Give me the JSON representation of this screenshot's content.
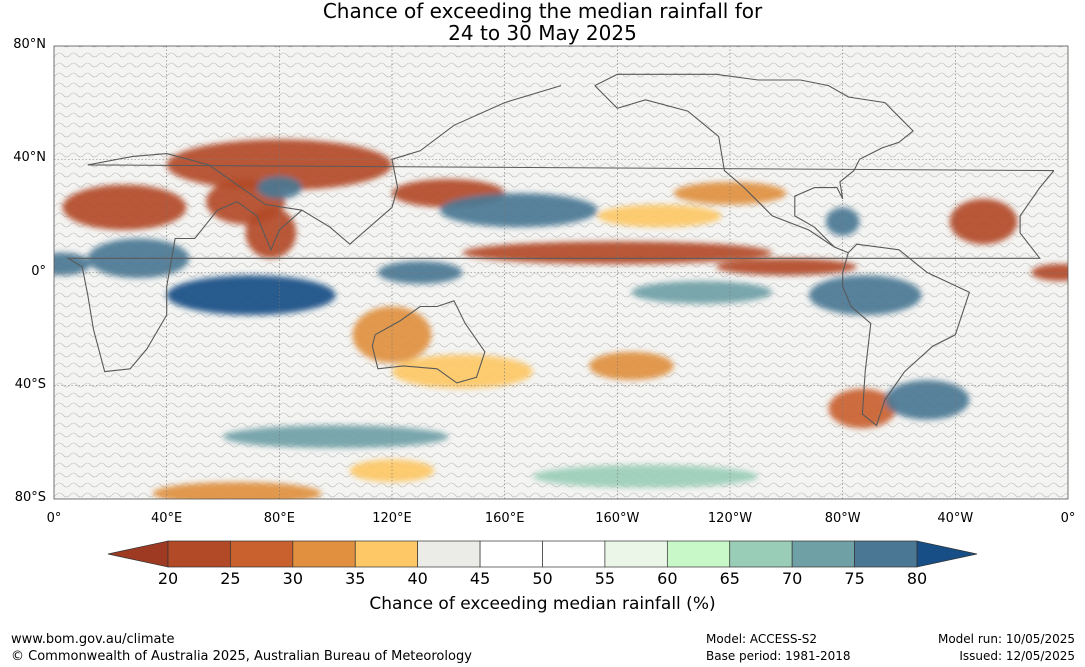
{
  "title_line1": "Chance of exceeding the median rainfall for",
  "title_line2": "24 to 30 May 2025",
  "lat_labels": [
    "80°N",
    "40°N",
    "0°",
    "40°S",
    "80°S"
  ],
  "lon_labels": [
    "0°",
    "40°E",
    "80°E",
    "120°E",
    "160°E",
    "160°W",
    "120°W",
    "80°W",
    "40°W",
    "0°"
  ],
  "colorbar": {
    "ticks": [
      "20",
      "25",
      "30",
      "35",
      "40",
      "45",
      "50",
      "55",
      "60",
      "65",
      "70",
      "75",
      "80"
    ],
    "colors": [
      "#9e3a22",
      "#b24a27",
      "#c9612f",
      "#e0903f",
      "#fdc865",
      "#ebebe7",
      "#ffffff",
      "#ffffff",
      "#ebf6e9",
      "#c8f7c8",
      "#9acdb8",
      "#6fa0a6",
      "#4a7894",
      "#174e85"
    ],
    "label": "Chance of exceeding median rainfall (%)"
  },
  "footer": {
    "website": "www.bom.gov.au/climate",
    "copyright": "© Commonwealth of Australia 2025, Australian Bureau of Meteorology",
    "model": "Model: ACCESS-S2",
    "base_period": "Base period: 1981-2018",
    "model_run": "Model run: 10/05/2025",
    "issued": "Issued: 12/05/2025"
  },
  "map": {
    "regions": [
      {
        "lon": 80,
        "lat": 38,
        "rx": 40,
        "ry": 9,
        "pct": 22
      },
      {
        "lon": 25,
        "lat": 23,
        "rx": 22,
        "ry": 8,
        "pct": 22
      },
      {
        "lon": 68,
        "lat": 25,
        "rx": 14,
        "ry": 8,
        "pct": 23
      },
      {
        "lon": 77,
        "lat": 14,
        "rx": 9,
        "ry": 9,
        "pct": 22
      },
      {
        "lon": 140,
        "lat": 28,
        "rx": 20,
        "ry": 5,
        "pct": 24
      },
      {
        "lon": -160,
        "lat": 7,
        "rx": 55,
        "ry": 4,
        "pct": 22
      },
      {
        "lon": -100,
        "lat": 2,
        "rx": 25,
        "ry": 3,
        "pct": 23
      },
      {
        "lon": -30,
        "lat": 18,
        "rx": 12,
        "ry": 8,
        "pct": 24
      },
      {
        "lon": -3,
        "lat": 0,
        "rx": 10,
        "ry": 3,
        "pct": 22
      },
      {
        "lon": 120,
        "lat": -22,
        "rx": 14,
        "ry": 10,
        "pct": 30
      },
      {
        "lon": 145,
        "lat": -35,
        "rx": 25,
        "ry": 6,
        "pct": 35
      },
      {
        "lon": -155,
        "lat": -33,
        "rx": 15,
        "ry": 5,
        "pct": 33
      },
      {
        "lon": -73,
        "lat": -48,
        "rx": 12,
        "ry": 7,
        "pct": 28
      },
      {
        "lon": 65,
        "lat": -78,
        "rx": 30,
        "ry": 4,
        "pct": 30
      },
      {
        "lon": -120,
        "lat": 28,
        "rx": 20,
        "ry": 4,
        "pct": 34
      },
      {
        "lon": -145,
        "lat": 20,
        "rx": 22,
        "ry": 4,
        "pct": 35
      },
      {
        "lon": 120,
        "lat": -70,
        "rx": 15,
        "ry": 4,
        "pct": 38
      },
      {
        "lon": 165,
        "lat": 22,
        "rx": 28,
        "ry": 6,
        "pct": 78
      },
      {
        "lon": 30,
        "lat": 5,
        "rx": 18,
        "ry": 7,
        "pct": 78
      },
      {
        "lon": 70,
        "lat": -8,
        "rx": 30,
        "ry": 7,
        "pct": 80
      },
      {
        "lon": 130,
        "lat": 0,
        "rx": 15,
        "ry": 4,
        "pct": 78
      },
      {
        "lon": 3,
        "lat": 3,
        "rx": 10,
        "ry": 4,
        "pct": 78
      },
      {
        "lon": 80,
        "lat": 30,
        "rx": 8,
        "ry": 4,
        "pct": 79
      },
      {
        "lon": -72,
        "lat": -8,
        "rx": 20,
        "ry": 7,
        "pct": 78
      },
      {
        "lon": -50,
        "lat": -45,
        "rx": 15,
        "ry": 7,
        "pct": 76
      },
      {
        "lon": -80,
        "lat": 18,
        "rx": 6,
        "ry": 5,
        "pct": 77
      },
      {
        "lon": -130,
        "lat": -7,
        "rx": 25,
        "ry": 4,
        "pct": 72
      },
      {
        "lon": 100,
        "lat": -58,
        "rx": 40,
        "ry": 4,
        "pct": 72
      },
      {
        "lon": -150,
        "lat": -72,
        "rx": 40,
        "ry": 4,
        "pct": 67
      }
    ],
    "contours": [
      {
        "points": [
          [
            -5,
            36
          ],
          [
            12,
            38
          ],
          [
            28,
            41
          ],
          [
            40,
            42
          ],
          [
            55,
            38
          ],
          [
            75,
            24
          ],
          [
            88,
            22
          ],
          [
            98,
            16
          ],
          [
            105,
            10
          ],
          [
            120,
            23
          ],
          [
            122,
            30
          ],
          [
            120,
            40
          ],
          [
            130,
            43
          ],
          [
            142,
            52
          ],
          [
            160,
            60
          ],
          [
            180,
            66
          ]
        ]
      },
      {
        "points": [
          [
            -5,
            36
          ],
          [
            -10,
            30
          ],
          [
            -17,
            20
          ],
          [
            -17,
            14
          ],
          [
            -10,
            5
          ],
          [
            5,
            5
          ],
          [
            10,
            2
          ],
          [
            12,
            -8
          ],
          [
            14,
            -20
          ],
          [
            18,
            -35
          ],
          [
            27,
            -34
          ],
          [
            33,
            -27
          ],
          [
            40,
            -15
          ],
          [
            40,
            -5
          ],
          [
            43,
            12
          ],
          [
            50,
            12
          ],
          [
            58,
            22
          ],
          [
            65,
            25
          ],
          [
            72,
            20
          ],
          [
            77,
            8
          ],
          [
            80,
            15
          ],
          [
            88,
            22
          ]
        ]
      },
      {
        "points": [
          [
            114,
            -22
          ],
          [
            113,
            -26
          ],
          [
            115,
            -34
          ],
          [
            124,
            -33
          ],
          [
            136,
            -34
          ],
          [
            143,
            -39
          ],
          [
            150,
            -37
          ],
          [
            153,
            -28
          ],
          [
            146,
            -18
          ],
          [
            142,
            -10
          ],
          [
            136,
            -12
          ],
          [
            130,
            -12
          ],
          [
            123,
            -17
          ],
          [
            114,
            -22
          ]
        ]
      },
      {
        "points": [
          [
            -168,
            66
          ],
          [
            -160,
            58
          ],
          [
            -150,
            61
          ],
          [
            -135,
            57
          ],
          [
            -124,
            48
          ],
          [
            -122,
            36
          ],
          [
            -115,
            30
          ],
          [
            -105,
            20
          ],
          [
            -92,
            15
          ],
          [
            -83,
            9
          ],
          [
            -78,
            7
          ],
          [
            -75,
            10
          ],
          [
            -60,
            8
          ],
          [
            -50,
            0
          ],
          [
            -35,
            -7
          ],
          [
            -40,
            -22
          ],
          [
            -48,
            -26
          ],
          [
            -58,
            -35
          ],
          [
            -65,
            -45
          ],
          [
            -68,
            -54
          ],
          [
            -73,
            -50
          ],
          [
            -72,
            -35
          ],
          [
            -70,
            -18
          ],
          [
            -77,
            -12
          ],
          [
            -80,
            -5
          ],
          [
            -80,
            0
          ],
          [
            -78,
            7
          ]
        ]
      },
      {
        "points": [
          [
            -83,
            9
          ],
          [
            -90,
            16
          ],
          [
            -97,
            20
          ],
          [
            -97,
            27
          ],
          [
            -90,
            30
          ],
          [
            -82,
            30
          ],
          [
            -80,
            26
          ],
          [
            -81,
            32
          ],
          [
            -76,
            36
          ],
          [
            -74,
            40
          ],
          [
            -70,
            42
          ],
          [
            -66,
            44
          ],
          [
            -60,
            46
          ],
          [
            -55,
            50
          ],
          [
            -60,
            55
          ],
          [
            -65,
            60
          ],
          [
            -78,
            62
          ],
          [
            -85,
            66
          ],
          [
            -95,
            68
          ],
          [
            -110,
            68
          ],
          [
            -125,
            70
          ],
          [
            -140,
            70
          ],
          [
            -160,
            70
          ],
          [
            -168,
            66
          ]
        ]
      }
    ]
  }
}
